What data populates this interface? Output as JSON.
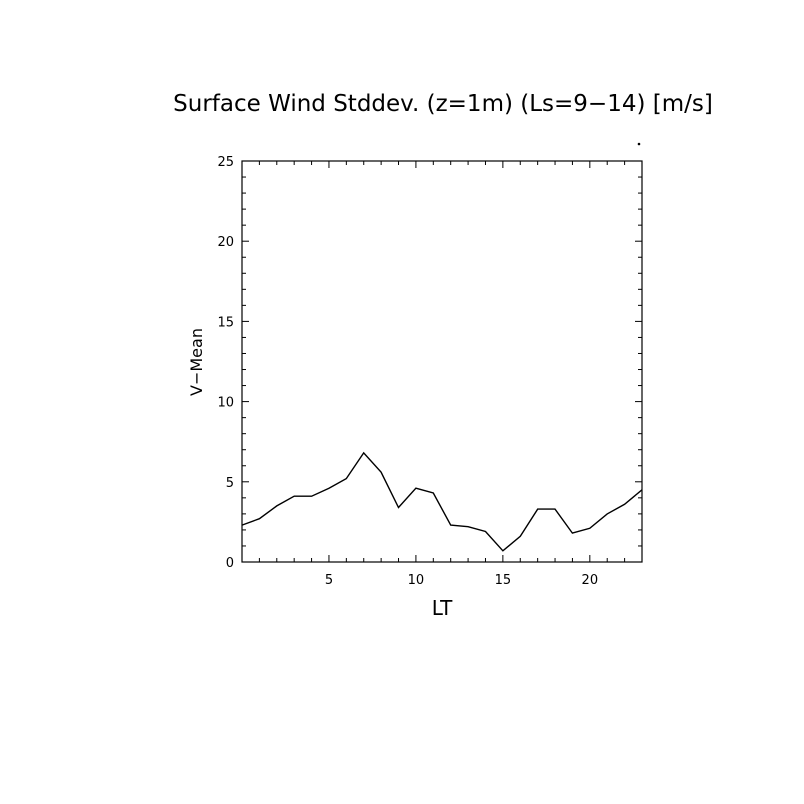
{
  "chart_data": {
    "type": "line",
    "title": "Surface Wind Stddev. (z=1m) (Ls=9−14) [m/s]",
    "xlabel": "LT",
    "ylabel": "V−Mean",
    "xlim": [
      0,
      23
    ],
    "ylim": [
      0,
      25
    ],
    "xticks": [
      5,
      10,
      15,
      20
    ],
    "yticks": [
      0,
      5,
      10,
      15,
      20,
      25
    ],
    "grid": false,
    "series": [
      {
        "x": [
          0,
          1,
          2,
          3,
          4,
          5,
          6,
          7,
          8,
          9,
          10,
          11,
          12,
          13,
          14,
          15,
          16,
          17,
          18,
          19,
          20,
          21,
          22,
          23
        ],
        "y": [
          2.3,
          2.7,
          3.5,
          4.1,
          4.1,
          4.6,
          5.2,
          6.8,
          5.6,
          3.4,
          4.6,
          4.3,
          2.3,
          2.2,
          1.9,
          0.7,
          1.6,
          3.3,
          3.3,
          1.8,
          2.1,
          3.0,
          3.6,
          4.5
        ]
      }
    ]
  }
}
